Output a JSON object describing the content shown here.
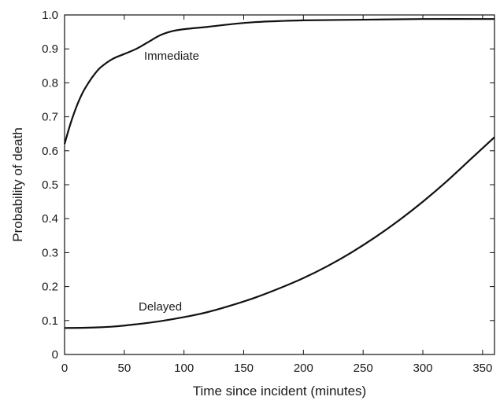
{
  "chart_data": {
    "type": "line",
    "title": "",
    "xlabel": "Time since incident (minutes)",
    "ylabel": "Probability of death",
    "xlim": [
      0,
      360
    ],
    "ylim": [
      0,
      1.0
    ],
    "xticks": [
      0,
      50,
      100,
      150,
      200,
      250,
      300,
      350
    ],
    "yticks": [
      0,
      0.1,
      0.2,
      0.3,
      0.4,
      0.5,
      0.6,
      0.7,
      0.8,
      0.9,
      1.0
    ],
    "xtick_labels": [
      "0",
      "50",
      "100",
      "150",
      "200",
      "250",
      "300",
      "350"
    ],
    "ytick_labels": [
      "0",
      "0.1",
      "0.2",
      "0.3",
      "0.4",
      "0.5",
      "0.6",
      "0.7",
      "0.8",
      "0.9",
      "1.0"
    ],
    "grid": false,
    "line_color": "#111111",
    "series": [
      {
        "name": "Immediate",
        "x": [
          0,
          5,
          10,
          15,
          20,
          25,
          30,
          40,
          50,
          60,
          70,
          80,
          90,
          100,
          120,
          140,
          160,
          180,
          200,
          250,
          300,
          360
        ],
        "y": [
          0.62,
          0.68,
          0.73,
          0.77,
          0.8,
          0.825,
          0.845,
          0.87,
          0.885,
          0.9,
          0.92,
          0.94,
          0.952,
          0.958,
          0.965,
          0.973,
          0.979,
          0.982,
          0.984,
          0.986,
          0.988,
          0.988
        ]
      },
      {
        "name": "Delayed",
        "x": [
          0,
          20,
          40,
          60,
          80,
          100,
          120,
          140,
          160,
          180,
          200,
          220,
          240,
          260,
          280,
          300,
          320,
          340,
          360
        ],
        "y": [
          0.078,
          0.079,
          0.082,
          0.089,
          0.098,
          0.11,
          0.125,
          0.145,
          0.168,
          0.195,
          0.225,
          0.26,
          0.3,
          0.345,
          0.395,
          0.45,
          0.51,
          0.575,
          0.64
        ]
      }
    ]
  }
}
